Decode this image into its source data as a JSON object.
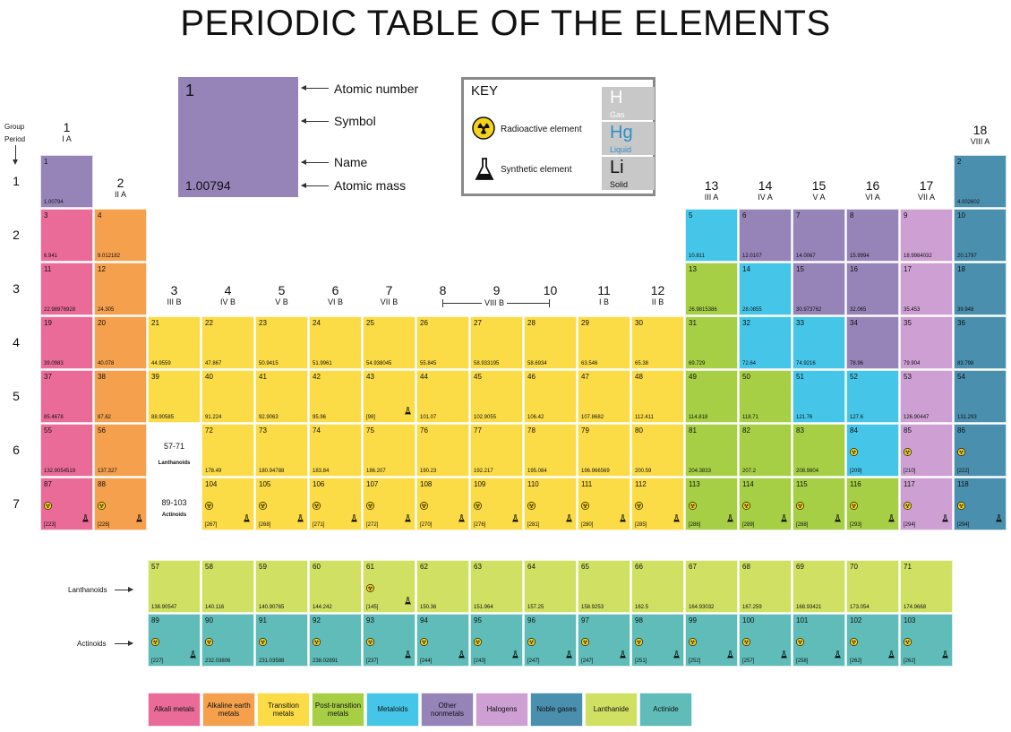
{
  "title": "PERIODIC TABLE OF THE ELEMENTS",
  "colors": {
    "alkali": "#ea6b98",
    "alkaline": "#f4a04c",
    "transition": "#fbdb46",
    "post": "#a7cf45",
    "metalloid": "#45c6e8",
    "nonmetal": "#9683b8",
    "halogen": "#cd9fd2",
    "noble": "#4a8fae",
    "lanthanide": "#cfe063",
    "actinide": "#5fbcb8"
  },
  "headings": {
    "group": "Group",
    "period": "Period",
    "lanthanoids_label": "Lanthanoids",
    "actinoids_label": "Actinoids",
    "lanth_range": "57-71",
    "lanth_word": "Lanthanoids",
    "act_range": "89-103",
    "act_word": "Actinoids",
    "viii_b": "VIII B"
  },
  "groups": [
    {
      "n": "1",
      "r": "I A"
    },
    {
      "n": "2",
      "r": "II A"
    },
    {
      "n": "3",
      "r": "III B"
    },
    {
      "n": "4",
      "r": "IV B"
    },
    {
      "n": "5",
      "r": "V B"
    },
    {
      "n": "6",
      "r": "VI B"
    },
    {
      "n": "7",
      "r": "VII B"
    },
    {
      "n": "8",
      "r": ""
    },
    {
      "n": "9",
      "r": ""
    },
    {
      "n": "10",
      "r": ""
    },
    {
      "n": "11",
      "r": "I B"
    },
    {
      "n": "12",
      "r": "II B"
    },
    {
      "n": "13",
      "r": "III A"
    },
    {
      "n": "14",
      "r": "IV A"
    },
    {
      "n": "15",
      "r": "V A"
    },
    {
      "n": "16",
      "r": "VI A"
    },
    {
      "n": "17",
      "r": "VII A"
    },
    {
      "n": "18",
      "r": "VIII A"
    }
  ],
  "periods": [
    "1",
    "2",
    "3",
    "4",
    "5",
    "6",
    "7"
  ],
  "sample": {
    "number": "1",
    "mass": "1.00794",
    "atomic_number_label": "Atomic number",
    "symbol_label": "Symbol",
    "name_label": "Name",
    "atomic_mass_label": "Atomic mass"
  },
  "key": {
    "title": "KEY",
    "radioactive": "Radioactive element",
    "synthetic": "Synthetic element",
    "gas_symbol": "H",
    "gas": "Gas",
    "liquid_symbol": "Hg",
    "liquid": "Liquid",
    "solid_symbol": "Li",
    "solid": "Solid",
    "gas_color": "#ffffff",
    "liquid_color": "#2f8fc4",
    "solid_color": "#111111"
  },
  "elements": [
    {
      "n": "1",
      "m": "1.00794",
      "c": "nonmetal",
      "col": 1,
      "row": 1
    },
    {
      "n": "2",
      "m": "4.002602",
      "c": "noble",
      "col": 18,
      "row": 1
    },
    {
      "n": "3",
      "m": "6.941",
      "c": "alkali",
      "col": 1,
      "row": 2
    },
    {
      "n": "4",
      "m": "9.012182",
      "c": "alkaline",
      "col": 2,
      "row": 2
    },
    {
      "n": "5",
      "m": "10.811",
      "c": "metalloid",
      "col": 13,
      "row": 2
    },
    {
      "n": "6",
      "m": "12.0107",
      "c": "nonmetal",
      "col": 14,
      "row": 2
    },
    {
      "n": "7",
      "m": "14.0067",
      "c": "nonmetal",
      "col": 15,
      "row": 2
    },
    {
      "n": "8",
      "m": "15.9994",
      "c": "nonmetal",
      "col": 16,
      "row": 2
    },
    {
      "n": "9",
      "m": "18.9984032",
      "c": "halogen",
      "col": 17,
      "row": 2
    },
    {
      "n": "10",
      "m": "20.1797",
      "c": "noble",
      "col": 18,
      "row": 2
    },
    {
      "n": "11",
      "m": "22.98976928",
      "c": "alkali",
      "col": 1,
      "row": 3
    },
    {
      "n": "12",
      "m": "24.305",
      "c": "alkaline",
      "col": 2,
      "row": 3
    },
    {
      "n": "13",
      "m": "26.9815386",
      "c": "post",
      "col": 13,
      "row": 3
    },
    {
      "n": "14",
      "m": "28.0855",
      "c": "metalloid",
      "col": 14,
      "row": 3
    },
    {
      "n": "15",
      "m": "30.973762",
      "c": "nonmetal",
      "col": 15,
      "row": 3
    },
    {
      "n": "16",
      "m": "32.065",
      "c": "nonmetal",
      "col": 16,
      "row": 3
    },
    {
      "n": "17",
      "m": "35.453",
      "c": "halogen",
      "col": 17,
      "row": 3
    },
    {
      "n": "18",
      "m": "39.948",
      "c": "noble",
      "col": 18,
      "row": 3
    },
    {
      "n": "19",
      "m": "39.0983",
      "c": "alkali",
      "col": 1,
      "row": 4
    },
    {
      "n": "20",
      "m": "40.078",
      "c": "alkaline",
      "col": 2,
      "row": 4
    },
    {
      "n": "21",
      "m": "44.9559",
      "c": "transition",
      "col": 3,
      "row": 4
    },
    {
      "n": "22",
      "m": "47.867",
      "c": "transition",
      "col": 4,
      "row": 4
    },
    {
      "n": "23",
      "m": "50.9415",
      "c": "transition",
      "col": 5,
      "row": 4
    },
    {
      "n": "24",
      "m": "51.9961",
      "c": "transition",
      "col": 6,
      "row": 4
    },
    {
      "n": "25",
      "m": "54.938045",
      "c": "transition",
      "col": 7,
      "row": 4
    },
    {
      "n": "26",
      "m": "55.845",
      "c": "transition",
      "col": 8,
      "row": 4
    },
    {
      "n": "27",
      "m": "58.933195",
      "c": "transition",
      "col": 9,
      "row": 4
    },
    {
      "n": "28",
      "m": "58.6934",
      "c": "transition",
      "col": 10,
      "row": 4
    },
    {
      "n": "29",
      "m": "63.546",
      "c": "transition",
      "col": 11,
      "row": 4
    },
    {
      "n": "30",
      "m": "65.38",
      "c": "transition",
      "col": 12,
      "row": 4
    },
    {
      "n": "31",
      "m": "69.729",
      "c": "post",
      "col": 13,
      "row": 4
    },
    {
      "n": "32",
      "m": "72.64",
      "c": "metalloid",
      "col": 14,
      "row": 4
    },
    {
      "n": "33",
      "m": "74.9216",
      "c": "metalloid",
      "col": 15,
      "row": 4
    },
    {
      "n": "34",
      "m": "78.96",
      "c": "nonmetal",
      "col": 16,
      "row": 4
    },
    {
      "n": "35",
      "m": "79.904",
      "c": "halogen",
      "col": 17,
      "row": 4
    },
    {
      "n": "36",
      "m": "83.798",
      "c": "noble",
      "col": 18,
      "row": 4
    },
    {
      "n": "37",
      "m": "85.4678",
      "c": "alkali",
      "col": 1,
      "row": 5
    },
    {
      "n": "38",
      "m": "87.62",
      "c": "alkaline",
      "col": 2,
      "row": 5
    },
    {
      "n": "39",
      "m": "88.90585",
      "c": "transition",
      "col": 3,
      "row": 5
    },
    {
      "n": "40",
      "m": "91.224",
      "c": "transition",
      "col": 4,
      "row": 5
    },
    {
      "n": "41",
      "m": "92.9063",
      "c": "transition",
      "col": 5,
      "row": 5
    },
    {
      "n": "42",
      "m": "95.96",
      "c": "transition",
      "col": 6,
      "row": 5
    },
    {
      "n": "43",
      "m": "[98]",
      "c": "transition",
      "col": 7,
      "row": 5,
      "syn": true
    },
    {
      "n": "44",
      "m": "101.07",
      "c": "transition",
      "col": 8,
      "row": 5
    },
    {
      "n": "45",
      "m": "102.9055",
      "c": "transition",
      "col": 9,
      "row": 5
    },
    {
      "n": "46",
      "m": "106.42",
      "c": "transition",
      "col": 10,
      "row": 5
    },
    {
      "n": "47",
      "m": "107.8682",
      "c": "transition",
      "col": 11,
      "row": 5
    },
    {
      "n": "48",
      "m": "112.411",
      "c": "transition",
      "col": 12,
      "row": 5
    },
    {
      "n": "49",
      "m": "114.818",
      "c": "post",
      "col": 13,
      "row": 5
    },
    {
      "n": "50",
      "m": "118.71",
      "c": "post",
      "col": 14,
      "row": 5
    },
    {
      "n": "51",
      "m": "121.76",
      "c": "metalloid",
      "col": 15,
      "row": 5
    },
    {
      "n": "52",
      "m": "127.6",
      "c": "metalloid",
      "col": 16,
      "row": 5
    },
    {
      "n": "53",
      "m": "126.90447",
      "c": "halogen",
      "col": 17,
      "row": 5
    },
    {
      "n": "54",
      "m": "131.293",
      "c": "noble",
      "col": 18,
      "row": 5
    },
    {
      "n": "55",
      "m": "132.9054519",
      "c": "alkali",
      "col": 1,
      "row": 6
    },
    {
      "n": "56",
      "m": "137.327",
      "c": "alkaline",
      "col": 2,
      "row": 6
    },
    {
      "n": "72",
      "m": "178.49",
      "c": "transition",
      "col": 4,
      "row": 6
    },
    {
      "n": "73",
      "m": "180.94788",
      "c": "transition",
      "col": 5,
      "row": 6
    },
    {
      "n": "74",
      "m": "183.84",
      "c": "transition",
      "col": 6,
      "row": 6
    },
    {
      "n": "75",
      "m": "186.207",
      "c": "transition",
      "col": 7,
      "row": 6
    },
    {
      "n": "76",
      "m": "190.23",
      "c": "transition",
      "col": 8,
      "row": 6
    },
    {
      "n": "77",
      "m": "192.217",
      "c": "transition",
      "col": 9,
      "row": 6
    },
    {
      "n": "78",
      "m": "195.084",
      "c": "transition",
      "col": 10,
      "row": 6
    },
    {
      "n": "79",
      "m": "196.966569",
      "c": "transition",
      "col": 11,
      "row": 6
    },
    {
      "n": "80",
      "m": "200.59",
      "c": "transition",
      "col": 12,
      "row": 6
    },
    {
      "n": "81",
      "m": "204.3833",
      "c": "post",
      "col": 13,
      "row": 6
    },
    {
      "n": "82",
      "m": "207.2",
      "c": "post",
      "col": 14,
      "row": 6
    },
    {
      "n": "83",
      "m": "208.9804",
      "c": "post",
      "col": 15,
      "row": 6
    },
    {
      "n": "84",
      "m": "[209]",
      "c": "metalloid",
      "col": 16,
      "row": 6,
      "rad": true
    },
    {
      "n": "85",
      "m": "[210]",
      "c": "halogen",
      "col": 17,
      "row": 6,
      "rad": true
    },
    {
      "n": "86",
      "m": "[222]",
      "c": "noble",
      "col": 18,
      "row": 6,
      "rad": true
    },
    {
      "n": "87",
      "m": "[223]",
      "c": "alkali",
      "col": 1,
      "row": 7,
      "rad": true,
      "syn": true
    },
    {
      "n": "88",
      "m": "[226]",
      "c": "alkaline",
      "col": 2,
      "row": 7,
      "rad": true,
      "syn": true
    },
    {
      "n": "104",
      "m": "[267]",
      "c": "transition",
      "col": 4,
      "row": 7,
      "rad": true,
      "syn": true
    },
    {
      "n": "105",
      "m": "[268]",
      "c": "transition",
      "col": 5,
      "row": 7,
      "rad": true,
      "syn": true
    },
    {
      "n": "106",
      "m": "[271]",
      "c": "transition",
      "col": 6,
      "row": 7,
      "rad": true,
      "syn": true
    },
    {
      "n": "107",
      "m": "[272]",
      "c": "transition",
      "col": 7,
      "row": 7,
      "rad": true,
      "syn": true
    },
    {
      "n": "108",
      "m": "[270]",
      "c": "transition",
      "col": 8,
      "row": 7,
      "rad": true,
      "syn": true
    },
    {
      "n": "109",
      "m": "[276]",
      "c": "transition",
      "col": 9,
      "row": 7,
      "rad": true,
      "syn": true
    },
    {
      "n": "110",
      "m": "[281]",
      "c": "transition",
      "col": 10,
      "row": 7,
      "rad": true,
      "syn": true
    },
    {
      "n": "111",
      "m": "[280]",
      "c": "transition",
      "col": 11,
      "row": 7,
      "rad": true,
      "syn": true
    },
    {
      "n": "112",
      "m": "[285]",
      "c": "transition",
      "col": 12,
      "row": 7,
      "rad": true,
      "syn": true
    },
    {
      "n": "113",
      "m": "[286]",
      "c": "post",
      "col": 13,
      "row": 7,
      "rad": true,
      "syn": true
    },
    {
      "n": "114",
      "m": "[289]",
      "c": "post",
      "col": 14,
      "row": 7,
      "rad": true,
      "syn": true
    },
    {
      "n": "115",
      "m": "[288]",
      "c": "post",
      "col": 15,
      "row": 7,
      "rad": true,
      "syn": true
    },
    {
      "n": "116",
      "m": "[293]",
      "c": "post",
      "col": 16,
      "row": 7,
      "rad": true,
      "syn": true
    },
    {
      "n": "117",
      "m": "[294]",
      "c": "halogen",
      "col": 17,
      "row": 7,
      "rad": true,
      "syn": true
    },
    {
      "n": "118",
      "m": "[294]",
      "c": "noble",
      "col": 18,
      "row": 7,
      "rad": true,
      "syn": true
    },
    {
      "n": "57",
      "m": "138.90547",
      "c": "lanthanide",
      "col": 3,
      "row": 9
    },
    {
      "n": "58",
      "m": "140.116",
      "c": "lanthanide",
      "col": 4,
      "row": 9
    },
    {
      "n": "59",
      "m": "140.90765",
      "c": "lanthanide",
      "col": 5,
      "row": 9
    },
    {
      "n": "60",
      "m": "144.242",
      "c": "lanthanide",
      "col": 6,
      "row": 9
    },
    {
      "n": "61",
      "m": "[145]",
      "c": "lanthanide",
      "col": 7,
      "row": 9,
      "rad": true,
      "syn": true
    },
    {
      "n": "62",
      "m": "150.36",
      "c": "lanthanide",
      "col": 8,
      "row": 9
    },
    {
      "n": "63",
      "m": "151.964",
      "c": "lanthanide",
      "col": 9,
      "row": 9
    },
    {
      "n": "64",
      "m": "157.25",
      "c": "lanthanide",
      "col": 10,
      "row": 9
    },
    {
      "n": "65",
      "m": "158.9253",
      "c": "lanthanide",
      "col": 11,
      "row": 9
    },
    {
      "n": "66",
      "m": "162.5",
      "c": "lanthanide",
      "col": 12,
      "row": 9
    },
    {
      "n": "67",
      "m": "164.93032",
      "c": "lanthanide",
      "col": 13,
      "row": 9
    },
    {
      "n": "68",
      "m": "167.259",
      "c": "lanthanide",
      "col": 14,
      "row": 9
    },
    {
      "n": "69",
      "m": "168.93421",
      "c": "lanthanide",
      "col": 15,
      "row": 9
    },
    {
      "n": "70",
      "m": "173.054",
      "c": "lanthanide",
      "col": 16,
      "row": 9
    },
    {
      "n": "71",
      "m": "174.9668",
      "c": "lanthanide",
      "col": 17,
      "row": 9
    },
    {
      "n": "89",
      "m": "[227]",
      "c": "actinide",
      "col": 3,
      "row": 10,
      "rad": true,
      "syn": true
    },
    {
      "n": "90",
      "m": "232.03806",
      "c": "actinide",
      "col": 4,
      "row": 10,
      "rad": true
    },
    {
      "n": "91",
      "m": "231.03588",
      "c": "actinide",
      "col": 5,
      "row": 10,
      "rad": true
    },
    {
      "n": "92",
      "m": "238.02891",
      "c": "actinide",
      "col": 6,
      "row": 10,
      "rad": true
    },
    {
      "n": "93",
      "m": "[237]",
      "c": "actinide",
      "col": 7,
      "row": 10,
      "rad": true,
      "syn": true
    },
    {
      "n": "94",
      "m": "[244]",
      "c": "actinide",
      "col": 8,
      "row": 10,
      "rad": true,
      "syn": true
    },
    {
      "n": "95",
      "m": "[243]",
      "c": "actinide",
      "col": 9,
      "row": 10,
      "rad": true,
      "syn": true
    },
    {
      "n": "96",
      "m": "[247]",
      "c": "actinide",
      "col": 10,
      "row": 10,
      "rad": true,
      "syn": true
    },
    {
      "n": "97",
      "m": "[247]",
      "c": "actinide",
      "col": 11,
      "row": 10,
      "rad": true,
      "syn": true
    },
    {
      "n": "98",
      "m": "[251]",
      "c": "actinide",
      "col": 12,
      "row": 10,
      "rad": true,
      "syn": true
    },
    {
      "n": "99",
      "m": "[252]",
      "c": "actinide",
      "col": 13,
      "row": 10,
      "rad": true,
      "syn": true
    },
    {
      "n": "100",
      "m": "[257]",
      "c": "actinide",
      "col": 14,
      "row": 10,
      "rad": true,
      "syn": true
    },
    {
      "n": "101",
      "m": "[258]",
      "c": "actinide",
      "col": 15,
      "row": 10,
      "rad": true,
      "syn": true
    },
    {
      "n": "102",
      "m": "[262]",
      "c": "actinide",
      "col": 16,
      "row": 10,
      "rad": true,
      "syn": true
    },
    {
      "n": "103",
      "m": "[262]",
      "c": "actinide",
      "col": 17,
      "row": 10,
      "rad": true,
      "syn": true
    }
  ],
  "legend": [
    {
      "label": "Alkali metals",
      "c": "alkali"
    },
    {
      "label": "Alkaline earth metals",
      "c": "alkaline"
    },
    {
      "label": "Transition metals",
      "c": "transition"
    },
    {
      "label": "Post-transition metals",
      "c": "post"
    },
    {
      "label": "Metaloids",
      "c": "metalloid"
    },
    {
      "label": "Other nonmetals",
      "c": "nonmetal"
    },
    {
      "label": "Halogens",
      "c": "halogen"
    },
    {
      "label": "Noble gases",
      "c": "noble"
    },
    {
      "label": "Lanthanide",
      "c": "lanthanide"
    },
    {
      "label": "Actinide",
      "c": "actinide"
    }
  ]
}
